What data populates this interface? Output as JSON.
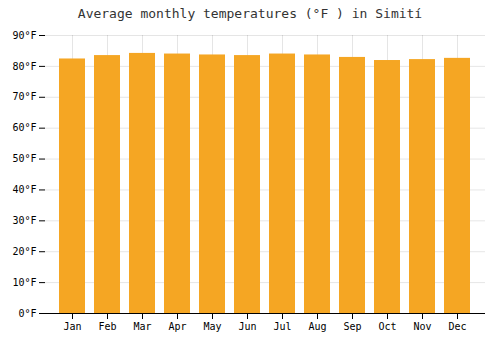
{
  "chart_data": {
    "type": "bar",
    "title": "Average monthly temperatures (°F ) in Simití",
    "categories": [
      "Jan",
      "Feb",
      "Mar",
      "Apr",
      "May",
      "Jun",
      "Jul",
      "Aug",
      "Sep",
      "Oct",
      "Nov",
      "Dec"
    ],
    "values": [
      82.4,
      83.5,
      84.2,
      84.0,
      83.7,
      83.5,
      84.0,
      83.7,
      82.9,
      81.9,
      82.2,
      82.6
    ],
    "color": "#F5A623",
    "ylim": [
      0,
      90
    ],
    "yticks": [
      {
        "value": 0,
        "label": "0°F"
      },
      {
        "value": 10,
        "label": "10°F"
      },
      {
        "value": 20,
        "label": "20°F"
      },
      {
        "value": 30,
        "label": "30°F"
      },
      {
        "value": 40,
        "label": "40°F"
      },
      {
        "value": 50,
        "label": "50°F"
      },
      {
        "value": 60,
        "label": "60°F"
      },
      {
        "value": 70,
        "label": "70°F"
      },
      {
        "value": 80,
        "label": "80°F"
      },
      {
        "value": 90,
        "label": "90°F"
      }
    ],
    "grid": true
  }
}
